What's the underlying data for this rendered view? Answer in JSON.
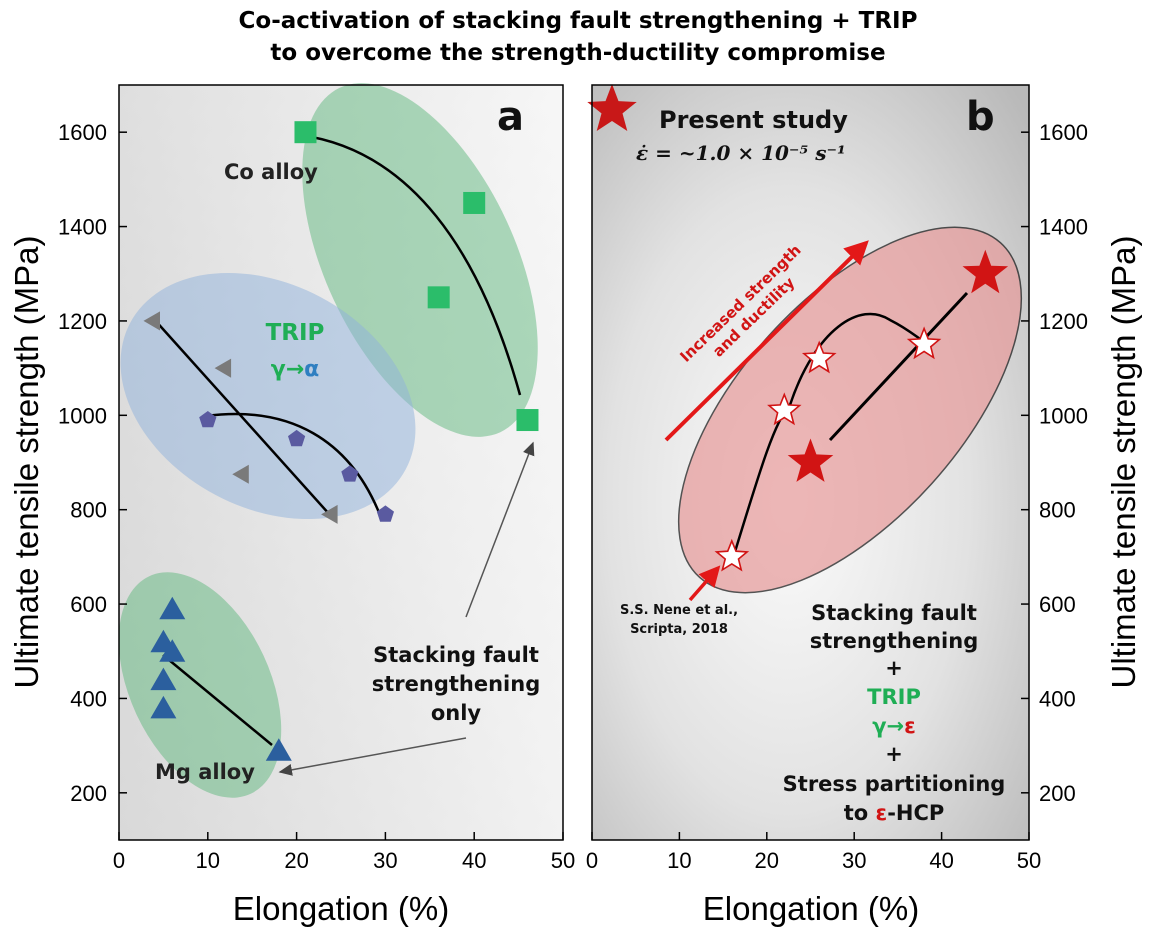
{
  "title": {
    "line1": "Co-activation of stacking fault strengthening + TRIP",
    "line2": "to overcome the strength-ductility compromise"
  },
  "chart_data": [
    {
      "panel": "a",
      "type": "scatter",
      "xlabel": "Elongation (%)",
      "ylabel": "Ultimate tensile strength (MPa)",
      "xlim": [
        0,
        50
      ],
      "ylim": [
        100,
        1700
      ],
      "xticks": [
        "0",
        "10",
        "20",
        "30",
        "40",
        "50"
      ],
      "yticks": [
        "200",
        "400",
        "600",
        "800",
        "1000",
        "1200",
        "1400",
        "1600"
      ],
      "background": "gradient",
      "groups": [
        {
          "label": "Co alloy",
          "marker": "square",
          "color": "#2bbd6a",
          "points": [
            [
              21,
              1600
            ],
            [
              40,
              1450
            ],
            [
              36,
              1250
            ],
            [
              46,
              990
            ]
          ]
        },
        {
          "label": "",
          "marker": "triangle-left",
          "color": "#7a7a7a",
          "points": [
            [
              4,
              1200
            ],
            [
              12,
              1100
            ],
            [
              14,
              875
            ],
            [
              24,
              790
            ]
          ]
        },
        {
          "label": "",
          "marker": "pentagon",
          "color": "#5a5aa0",
          "points": [
            [
              10,
              990
            ],
            [
              20,
              950
            ],
            [
              26,
              875
            ],
            [
              30,
              790
            ]
          ]
        },
        {
          "label": "Mg alloy",
          "marker": "triangle-up",
          "color": "#2b5f9e",
          "points": [
            [
              6,
              590
            ],
            [
              5,
              520
            ],
            [
              6,
              500
            ],
            [
              5,
              440
            ],
            [
              5,
              380
            ],
            [
              18,
              290
            ]
          ]
        }
      ],
      "annotations": {
        "co_alloy": "Co alloy",
        "trip": "TRIP",
        "trip_transform": [
          "γ",
          "→",
          "α"
        ],
        "sf_only": [
          "Stacking fault",
          "strengthening",
          "only"
        ],
        "mg_alloy": "Mg alloy"
      }
    },
    {
      "panel": "b",
      "type": "scatter",
      "xlabel": "Elongation (%)",
      "ylabel": "Ultimate tensile strength (MPa)",
      "xlim": [
        0,
        50
      ],
      "ylim": [
        100,
        1700
      ],
      "xticks": [
        "0",
        "10",
        "20",
        "30",
        "40",
        "50"
      ],
      "yticks": [
        "200",
        "400",
        "600",
        "800",
        "1000",
        "1200",
        "1400",
        "1600"
      ],
      "groups": [
        {
          "label": "Present study",
          "marker": "star-filled",
          "color": "#d11414",
          "points": [
            [
              25,
              900
            ],
            [
              45,
              1300
            ]
          ]
        },
        {
          "label": "S.S. Nene et al., Scripta, 2018",
          "marker": "star-open",
          "color": "#d11414",
          "points": [
            [
              16,
              700
            ],
            [
              22,
              1010
            ],
            [
              26,
              1120
            ],
            [
              38,
              1150
            ]
          ]
        }
      ],
      "legend": {
        "present_study": "Present study",
        "strain_rate": "ε̇ = ~1.0 × 10⁻⁵ s⁻¹"
      },
      "annotations": {
        "increase": [
          "Increased strength",
          "and ductility"
        ],
        "citation": [
          "S.S. Nene et al.,",
          "Scripta, 2018"
        ],
        "mech": [
          "Stacking fault",
          "strengthening",
          "+",
          "TRIP",
          "γ",
          "→",
          "ε",
          "+",
          "Stress partitioning",
          "to ",
          "ε",
          "-HCP"
        ]
      }
    }
  ],
  "colors": {
    "green_zone": "#5fb87e",
    "blue_zone": "#8fb2dc",
    "red_zone": "#e79a9a",
    "star_red": "#d11414",
    "text_green": "#1fae55",
    "text_blue": "#2f7fc1"
  }
}
